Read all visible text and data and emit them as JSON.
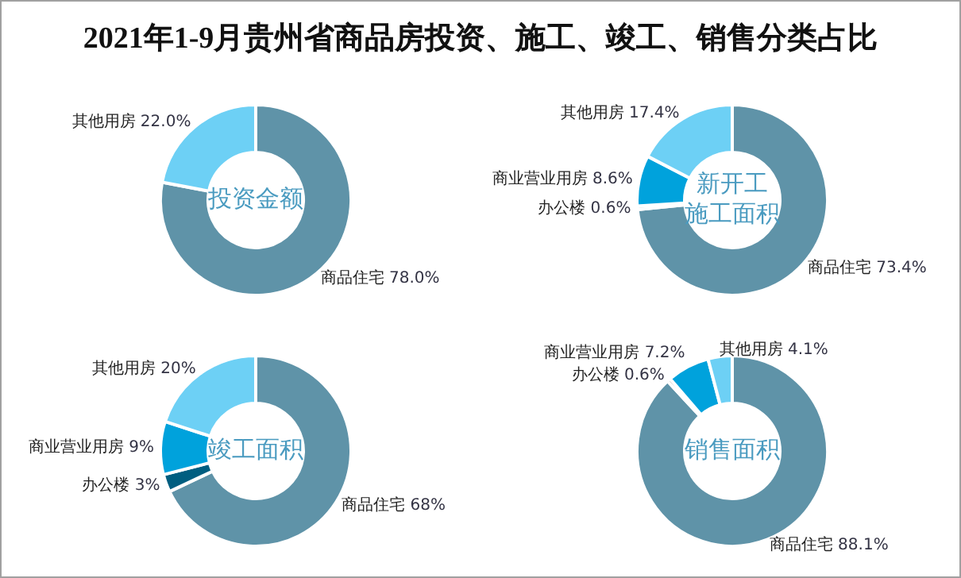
{
  "chart_data": [
    {
      "type": "other",
      "title": "2021年1-9月贵州省商品房投资、施工、竣工、销售分类占比"
    },
    {
      "type": "donut",
      "title": "投资金额",
      "categories": [
        "商品住宅",
        "其他用房"
      ],
      "values": [
        78.0,
        22.0
      ],
      "colors": [
        "#5f93a8",
        "#6dd0f5"
      ],
      "value_labels": [
        "78.0%",
        "22.0%"
      ]
    },
    {
      "type": "donut",
      "title": "新开工施工面积",
      "categories": [
        "商品住宅",
        "办公楼",
        "商业营业用房",
        "其他用房"
      ],
      "values": [
        73.4,
        0.6,
        8.6,
        17.4
      ],
      "colors": [
        "#5f93a8",
        "#d9d9d9",
        "#00a2dc",
        "#6dd0f5"
      ],
      "value_labels": [
        "73.4%",
        "0.6%",
        "8.6%",
        "17.4%"
      ]
    },
    {
      "type": "donut",
      "title": "竣工面积",
      "categories": [
        "商品住宅",
        "办公楼",
        "商业营业用房",
        "其他用房"
      ],
      "values": [
        68,
        3,
        9,
        20
      ],
      "colors": [
        "#5f93a8",
        "#005e80",
        "#00a2dc",
        "#6dd0f5"
      ],
      "value_labels": [
        "68%",
        "3%",
        "9%",
        "20%"
      ]
    },
    {
      "type": "donut",
      "title": "销售面积",
      "categories": [
        "商品住宅",
        "办公楼",
        "商业营业用房",
        "其他用房"
      ],
      "values": [
        88.1,
        0.6,
        7.2,
        4.1
      ],
      "colors": [
        "#5f93a8",
        "#a8a8a8",
        "#00a2dc",
        "#6dd0f5"
      ],
      "value_labels": [
        "88.1%",
        "0.6%",
        "7.2%",
        "4.1%"
      ]
    }
  ]
}
